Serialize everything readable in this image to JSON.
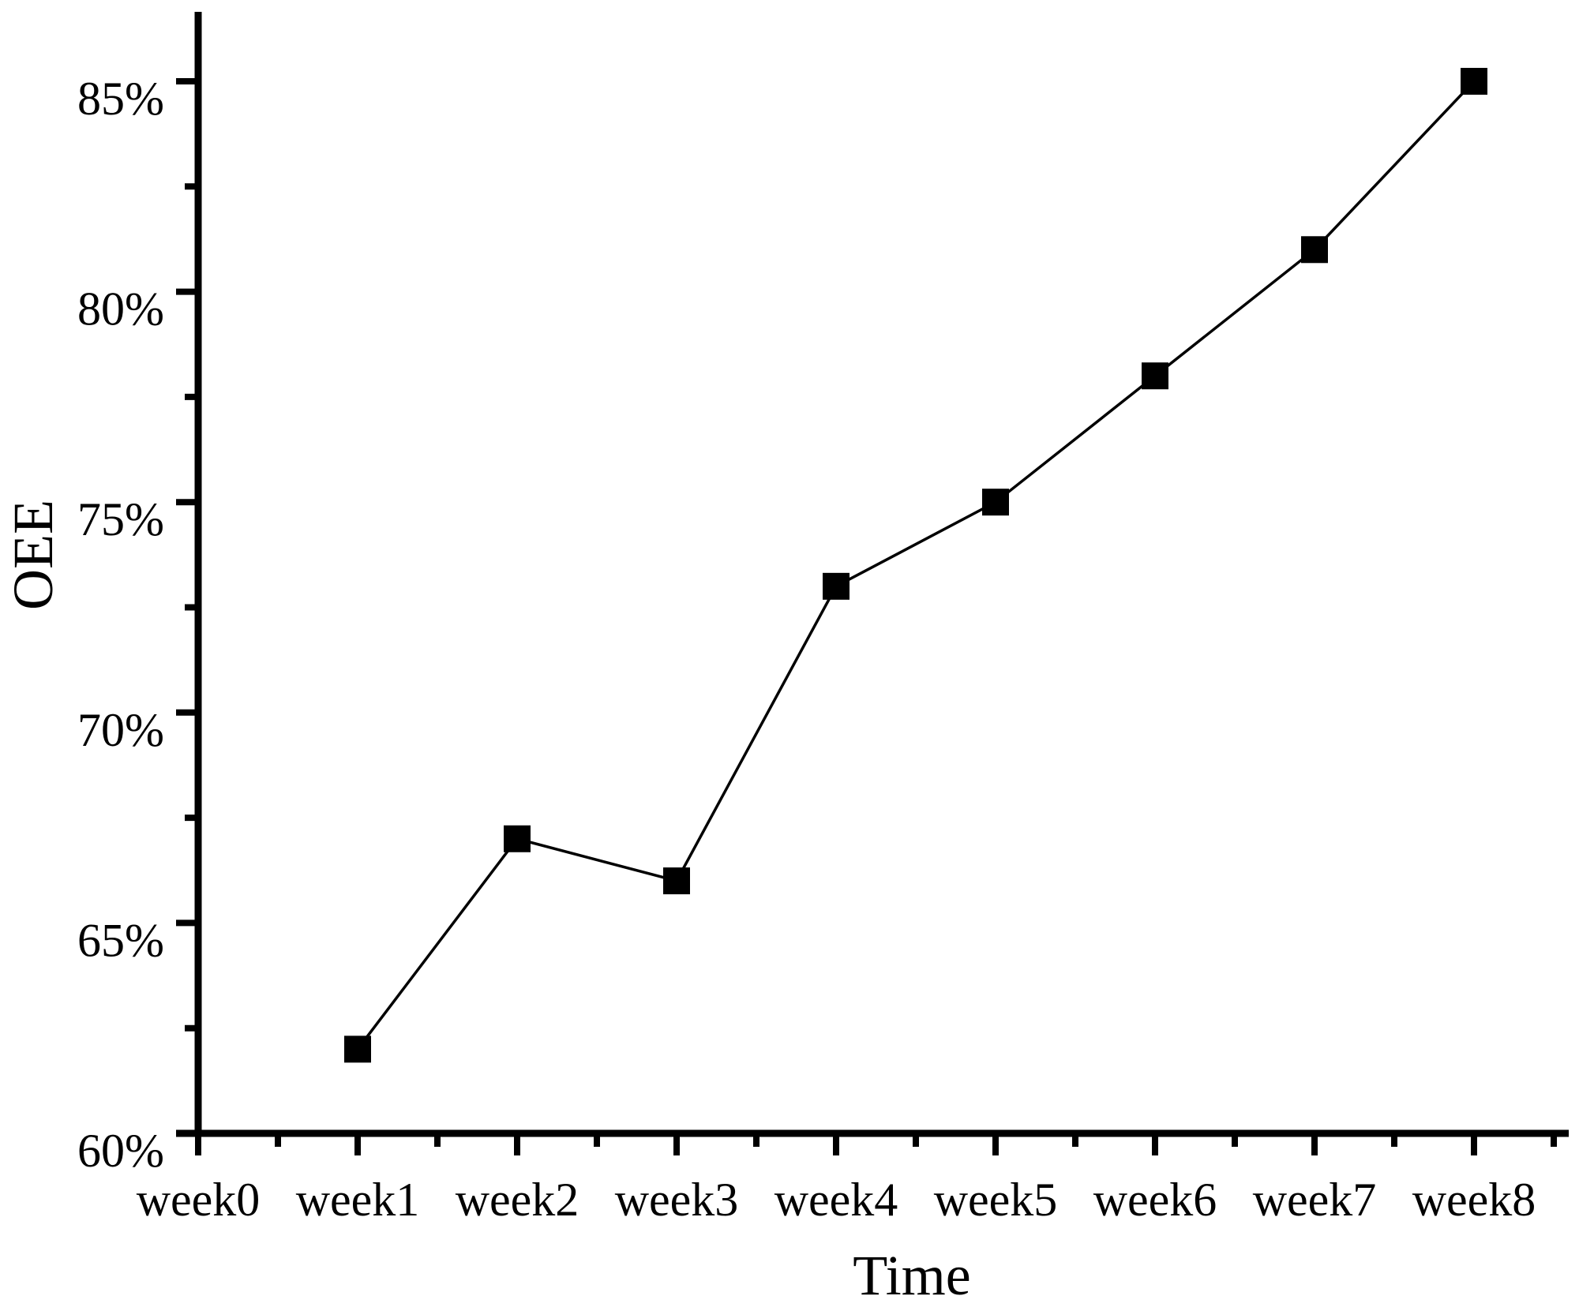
{
  "chart_data": {
    "type": "line",
    "title": "",
    "xlabel": "Time",
    "ylabel": "OEE",
    "categories": [
      "week0",
      "week1",
      "week2",
      "week3",
      "week4",
      "week5",
      "week6",
      "week7",
      "week8"
    ],
    "series": [
      {
        "name": "OEE",
        "marker": "filled-square",
        "color": "#000000",
        "points": [
          {
            "x": "week1",
            "y": 62
          },
          {
            "x": "week2",
            "y": 67
          },
          {
            "x": "week3",
            "y": 66
          },
          {
            "x": "week4",
            "y": 73
          },
          {
            "x": "week5",
            "y": 75
          },
          {
            "x": "week6",
            "y": 78
          },
          {
            "x": "week7",
            "y": 81
          },
          {
            "x": "week8",
            "y": 85
          }
        ]
      }
    ],
    "y_axis": {
      "major_tick_labels": [
        "60%",
        "65%",
        "70%",
        "75%",
        "80%",
        "85%"
      ],
      "major_tick_values": [
        60,
        65,
        70,
        75,
        80,
        85
      ],
      "minor_tick_values": [
        62.5,
        67.5,
        72.5,
        77.5,
        82.5
      ],
      "ylim": [
        60,
        86.7
      ]
    },
    "x_axis": {
      "tick_labels": [
        "week0",
        "week1",
        "week2",
        "week3",
        "week4",
        "week5",
        "week6",
        "week7",
        "week8"
      ],
      "minor_ticks_between_categories": true
    },
    "grid": false,
    "legend": false,
    "axis_color": "#000000",
    "background_color": "#ffffff"
  }
}
